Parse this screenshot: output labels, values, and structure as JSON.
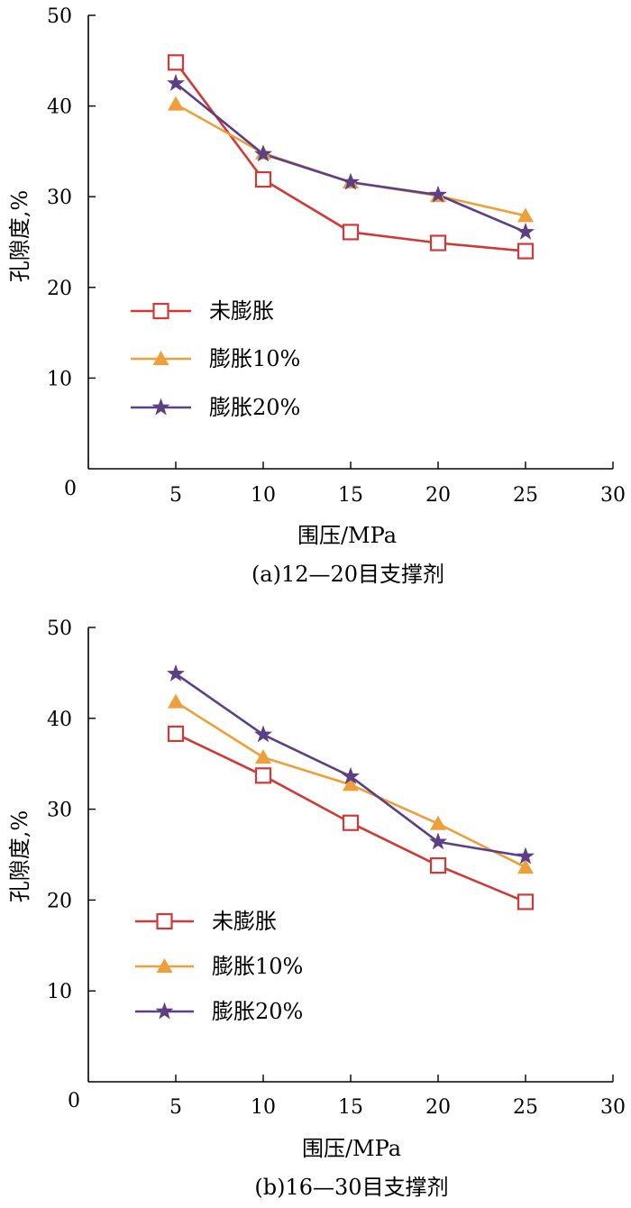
{
  "chart_data": [
    {
      "type": "line",
      "caption": "(a)12—20目支撑剂",
      "xlabel": "围压/MPa",
      "ylabel": "孔隙度,%",
      "xlim": [
        0,
        30
      ],
      "ylim": [
        0,
        50
      ],
      "xticks": [
        0,
        5,
        10,
        15,
        20,
        25,
        30
      ],
      "yticks": [
        10,
        20,
        30,
        40,
        50
      ],
      "grid": false,
      "legend_position": "lower-left",
      "x": [
        5,
        10,
        15,
        20,
        25
      ],
      "series": [
        {
          "name": "未膨胀",
          "marker": "square",
          "color": "#d03a36",
          "values": [
            44.8,
            31.9,
            26.1,
            24.9,
            24.0
          ]
        },
        {
          "name": "膨胀10%",
          "marker": "triangle",
          "color": "#eda03a",
          "values": [
            40.2,
            34.8,
            31.6,
            30.1,
            27.9
          ]
        },
        {
          "name": "膨胀20%",
          "marker": "star",
          "color": "#5b3f87",
          "values": [
            42.5,
            34.7,
            31.6,
            30.2,
            26.1
          ]
        }
      ]
    },
    {
      "type": "line",
      "caption": "(b)16—30目支撑剂",
      "xlabel": "围压/MPa",
      "ylabel": "孔隙度,%",
      "xlim": [
        0,
        30
      ],
      "ylim": [
        0,
        50
      ],
      "xticks": [
        0,
        5,
        10,
        15,
        20,
        25,
        30
      ],
      "yticks": [
        10,
        20,
        30,
        40,
        50
      ],
      "grid": false,
      "legend_position": "lower-left",
      "x": [
        5,
        10,
        15,
        20,
        25
      ],
      "series": [
        {
          "name": "未膨胀",
          "marker": "square",
          "color": "#d03a36",
          "values": [
            38.3,
            33.7,
            28.5,
            23.8,
            19.8
          ]
        },
        {
          "name": "膨胀10%",
          "marker": "triangle",
          "color": "#eda03a",
          "values": [
            41.8,
            35.7,
            32.7,
            28.4,
            23.6
          ]
        },
        {
          "name": "膨胀20%",
          "marker": "star",
          "color": "#5b3f87",
          "values": [
            44.9,
            38.2,
            33.6,
            26.4,
            24.8
          ]
        }
      ]
    }
  ]
}
